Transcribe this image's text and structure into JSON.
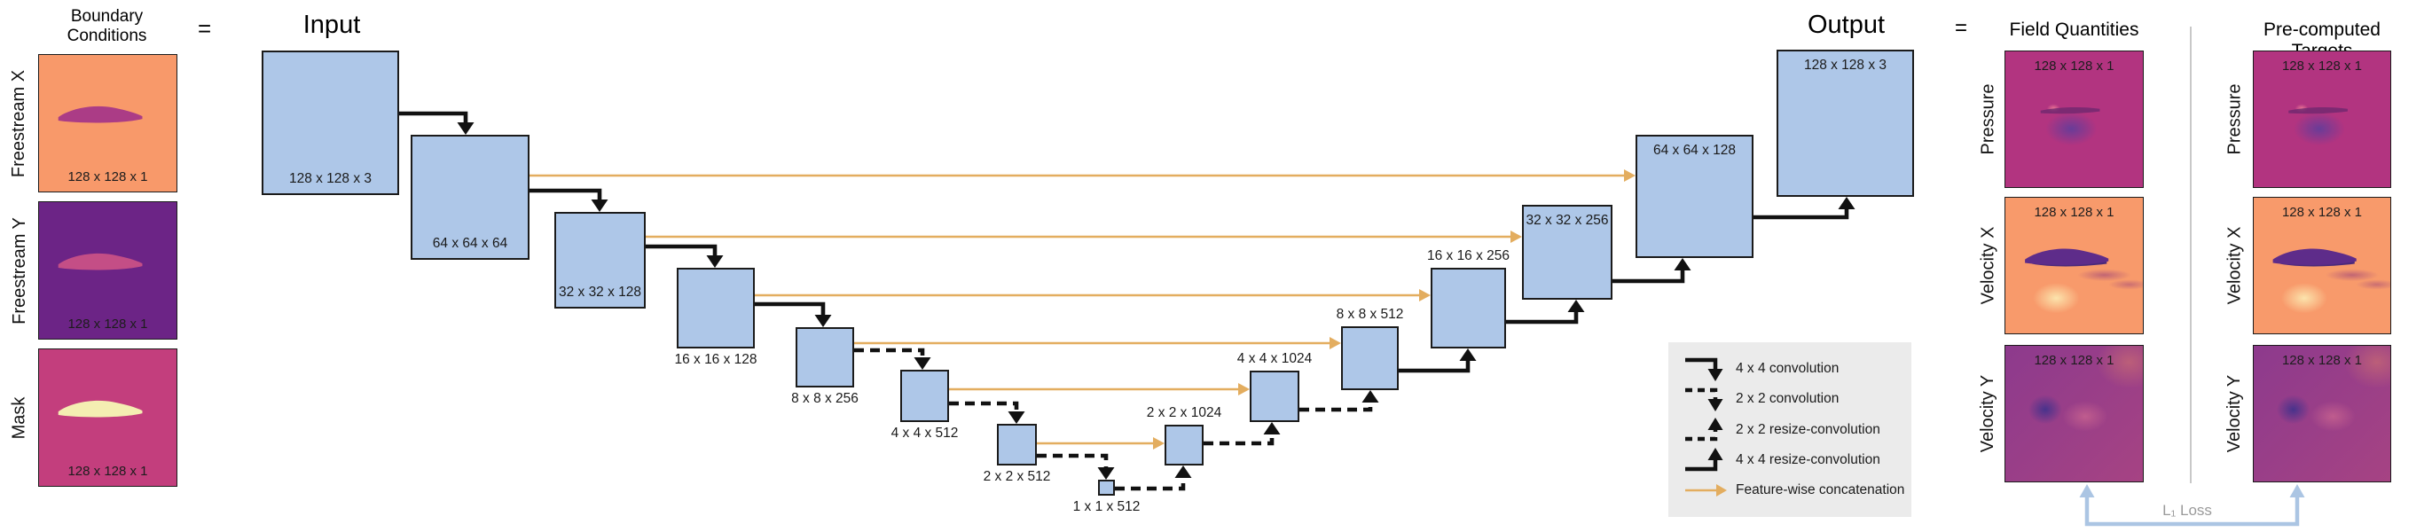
{
  "boundary": {
    "title_line1": "Boundary",
    "title_line2": "Conditions",
    "equals": "=",
    "items": [
      {
        "label": "Freestream X",
        "size": "128 x 128 x 1",
        "kind": "freestream-x"
      },
      {
        "label": "Freestream Y",
        "size": "128 x 128 x 1",
        "kind": "freestream-y"
      },
      {
        "label": "Mask",
        "size": "128 x 128 x 1",
        "kind": "mask"
      }
    ]
  },
  "unet": {
    "input_title": "Input",
    "output_title": "Output",
    "blocks": [
      {
        "label": "128 x 128 x 3"
      },
      {
        "label": "64 x 64 x 64"
      },
      {
        "label": "32 x 32 x 128"
      },
      {
        "label": "16 x 16 x 128"
      },
      {
        "label": "8 x 8 x 256"
      },
      {
        "label": "4 x 4 x 512"
      },
      {
        "label": "2 x 2 x 512"
      },
      {
        "label": "1 x 1 x 512"
      },
      {
        "label": "2 x 2 x 1024"
      },
      {
        "label": "4 x 4 x 1024"
      },
      {
        "label": "8 x 8 x 512"
      },
      {
        "label": "16 x 16 x 256"
      },
      {
        "label": "32 x 32 x 256"
      },
      {
        "label": "64 x 64 x 128"
      },
      {
        "label": "128 x 128 x 3"
      }
    ]
  },
  "legend": {
    "items": [
      {
        "glyph": "solid-down",
        "label": "4 x 4 convolution"
      },
      {
        "glyph": "dashed-down",
        "label": "2 x 2 convolution"
      },
      {
        "glyph": "dashed-up",
        "label": "2 x 2 resize-convolution"
      },
      {
        "glyph": "solid-up",
        "label": "4 x 4 resize-convolution"
      },
      {
        "glyph": "orange-right",
        "label": "Feature-wise concatenation"
      }
    ]
  },
  "outputs": {
    "equals": "=",
    "field_title": "Field Quantities",
    "target_title": "Pre-computed Targets",
    "size": "128 x 128 x 1",
    "rows": [
      {
        "label": "Pressure",
        "kind": "pressure"
      },
      {
        "label": "Velocity X",
        "kind": "velocity-x"
      },
      {
        "label": "Velocity Y",
        "kind": "velocity-y"
      }
    ],
    "loss_label": "L₁ Loss"
  },
  "colors": {
    "block_fill": "#aec7e8",
    "block_border": "#1b1b1b",
    "shadow_fill": "#bcc8d8",
    "shadow_border": "#8a8a8a",
    "concat_orange": "#e3ad5f",
    "arrow_black": "#111111",
    "legend_bg": "#ebebeb",
    "loss_blue": "#abc5e3",
    "loss_text_gray": "#9a9a9a",
    "freestream_x_bg": "#f8996a",
    "freestream_y_bg": "#6c2486",
    "mask_bg": "#c33e7d",
    "pressure_bg": "#b23480",
    "velocity_x_bg": "#f89a6b",
    "airfoil_magenta": "#ab3c86",
    "airfoil_pink": "#c44e86",
    "airfoil_cream": "#f4eeb2",
    "airfoil_dark_purple": "#5e2c8a"
  }
}
